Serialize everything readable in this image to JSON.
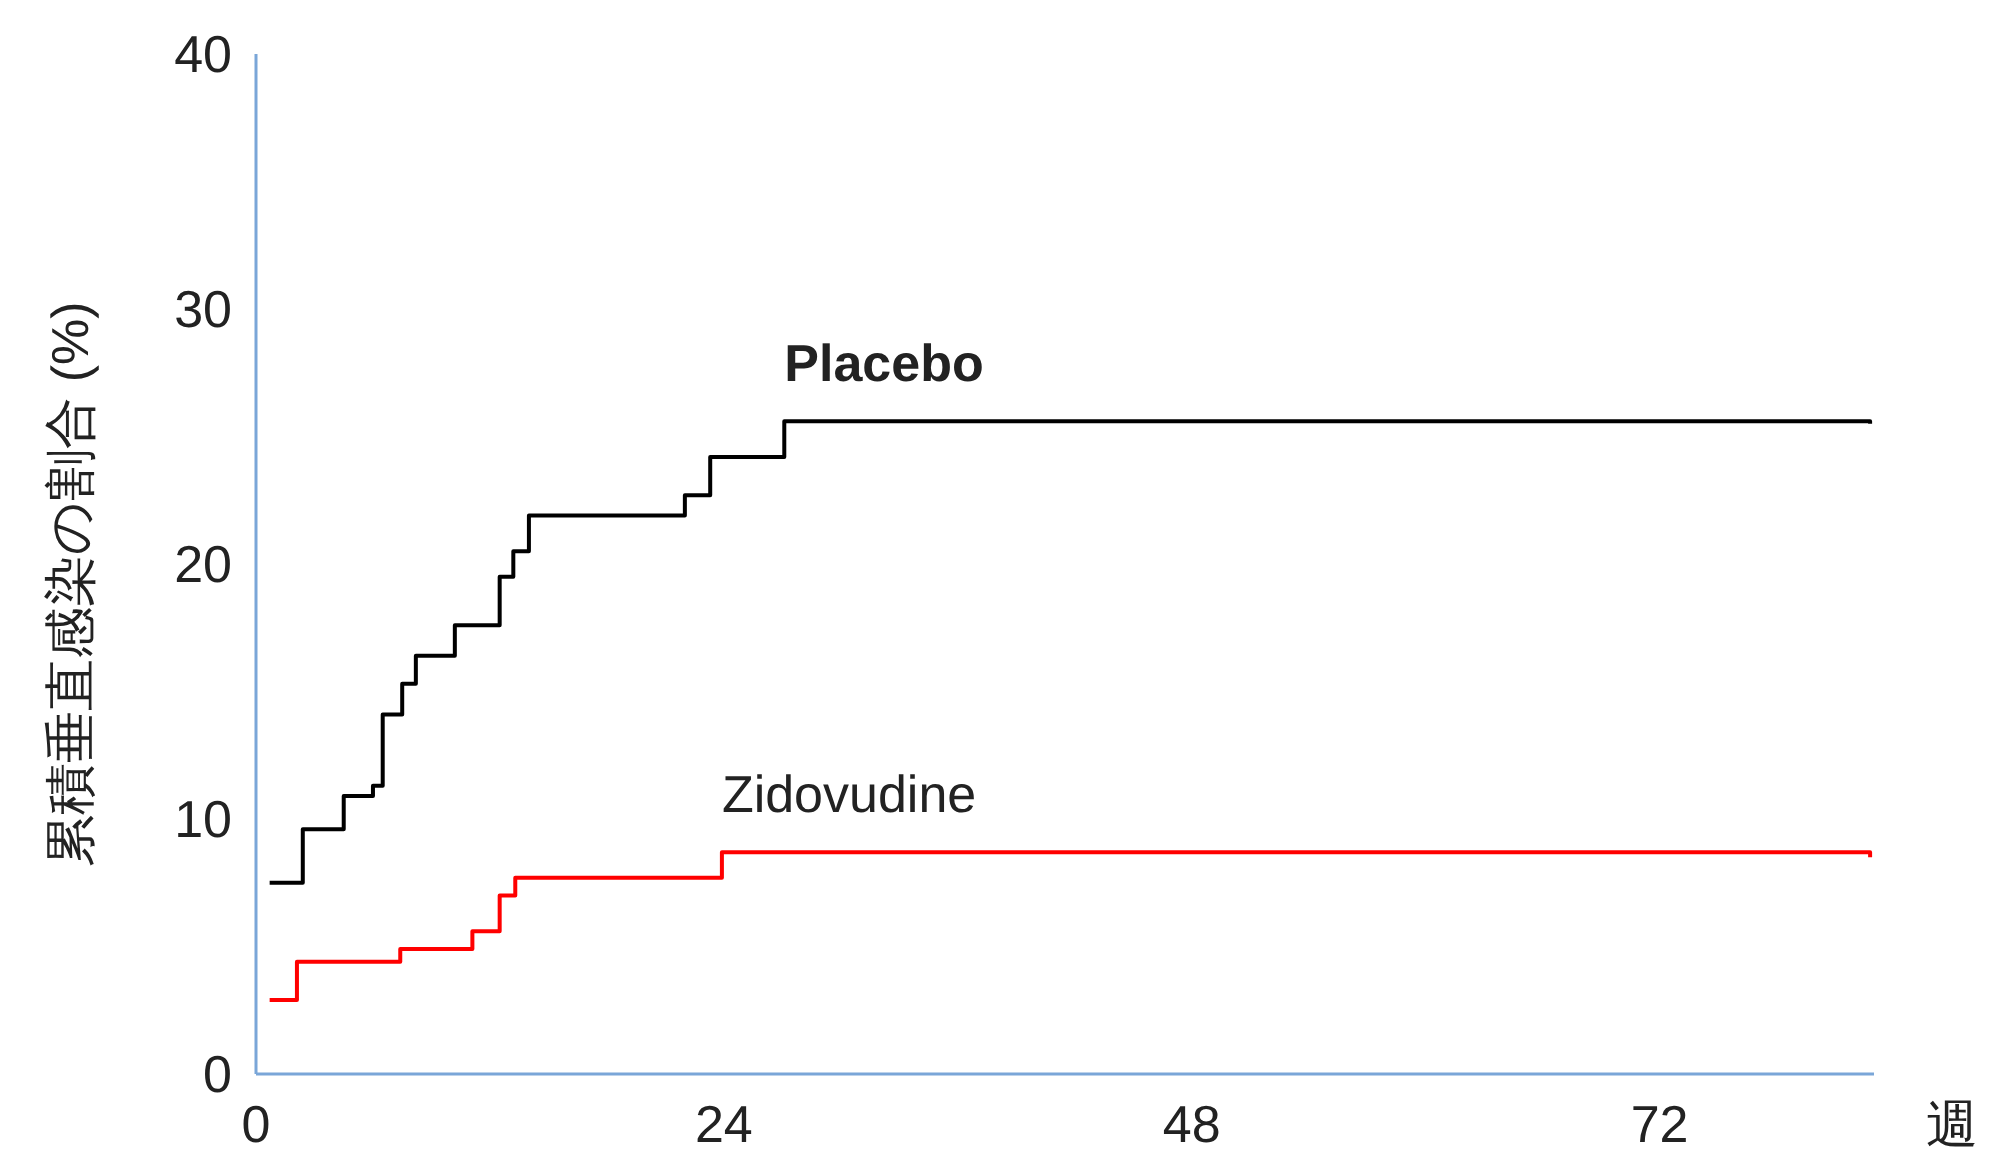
{
  "chart_data": {
    "type": "step",
    "xlabel": "週",
    "ylabel": "累積垂直感染の割合 (%)",
    "xlim": [
      0,
      83
    ],
    "xticks": [
      0,
      24,
      48,
      72
    ],
    "ylim": [
      0,
      40
    ],
    "yticks": [
      0,
      10,
      20,
      30,
      40
    ],
    "series": [
      {
        "name": "Placebo",
        "color": "#000000",
        "x": [
          0.7,
          2.4,
          4.5,
          6.0,
          6.5,
          7.5,
          8.2,
          10.2,
          12.5,
          13.2,
          14.0,
          22.0,
          23.3,
          27.1,
          82.8
        ],
        "values": [
          7.5,
          9.6,
          10.9,
          11.3,
          14.1,
          15.3,
          16.4,
          17.6,
          19.5,
          20.5,
          21.9,
          22.7,
          24.2,
          25.6,
          25.5
        ]
      },
      {
        "name": "Zidovudine",
        "color": "#ff0000",
        "x": [
          0.7,
          2.1,
          7.4,
          11.1,
          12.5,
          13.3,
          23.9,
          82.8
        ],
        "values": [
          2.9,
          4.4,
          4.9,
          5.6,
          7.0,
          7.7,
          8.7,
          8.5
        ]
      }
    ]
  }
}
